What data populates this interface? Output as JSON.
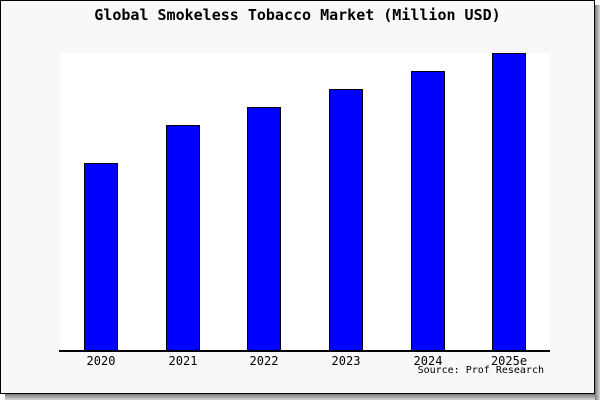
{
  "chart_data": {
    "type": "bar",
    "title": "Global Smokeless Tobacco Market (Million USD)",
    "categories": [
      "2020",
      "2021",
      "2022",
      "2023",
      "2024",
      "2025e"
    ],
    "values_relative": [
      0.63,
      0.76,
      0.82,
      0.88,
      0.94,
      1.0
    ],
    "xlabel": "",
    "ylabel": "",
    "value_axis_shown": false,
    "grid": false,
    "legend": false,
    "bar_color": "#0000ff",
    "bar_border_color": "#000000",
    "plot_background_color": "#ffffff",
    "background_color": "#f8f8f8",
    "source_note": "Source: Prof Research"
  }
}
